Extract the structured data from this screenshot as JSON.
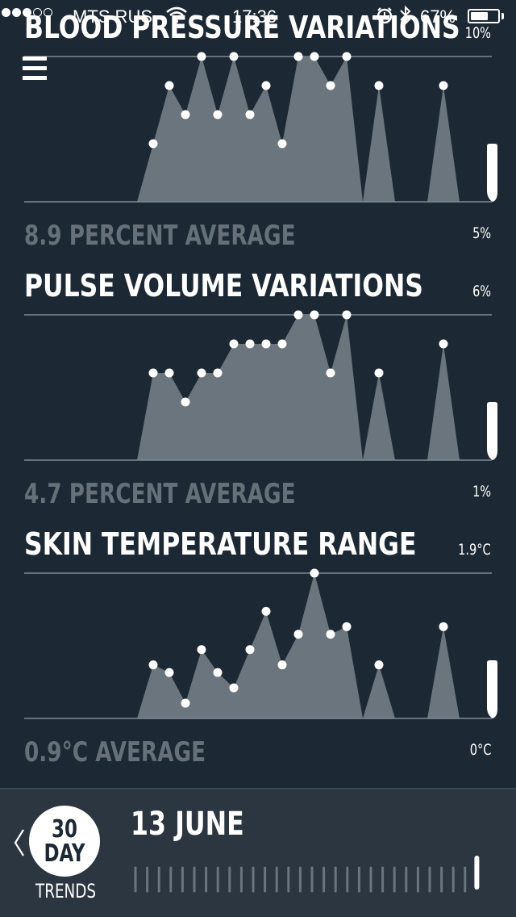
{
  "status_bar": {
    "signal_dots_filled": 3,
    "signal_dots_total": 5,
    "carrier": "MTS RUS",
    "time": "17:36",
    "battery_percent_label": "67%",
    "battery_level": 0.67,
    "icons": [
      "wifi-icon",
      "alarm-icon",
      "bluetooth-icon",
      "battery-icon"
    ]
  },
  "menu": {
    "icon": "hamburger-menu-icon"
  },
  "sections": [
    {
      "title": "BLOOD PRESSURE VARIATIONS",
      "max_label": "10%",
      "min_label": "5%",
      "average": "8.9 PERCENT AVERAGE"
    },
    {
      "title": "PULSE VOLUME VARIATIONS",
      "max_label": "6%",
      "min_label": "1%",
      "average": "4.7 PERCENT AVERAGE"
    },
    {
      "title": "SKIN TEMPERATURE RANGE",
      "max_label": "1.9°C",
      "min_label": "0°C",
      "average": "0.9°C AVERAGE"
    }
  ],
  "chart_data": [
    {
      "type": "area",
      "title": "BLOOD PRESSURE VARIATIONS",
      "ylim": [
        5,
        10
      ],
      "unit": "%",
      "x": [
        1,
        2,
        3,
        4,
        5,
        6,
        7,
        8,
        9,
        10,
        11,
        12,
        13,
        14,
        15,
        16,
        17,
        18,
        19,
        20,
        21,
        22,
        23,
        24,
        25,
        26,
        27,
        28,
        29,
        30
      ],
      "values": [
        null,
        null,
        null,
        null,
        null,
        null,
        null,
        7,
        9,
        8,
        10,
        8,
        10,
        8,
        9,
        7,
        10,
        10,
        9,
        10,
        null,
        9,
        null,
        null,
        null,
        9,
        null,
        null,
        null,
        null
      ],
      "current_marker_level": 0.4
    },
    {
      "type": "area",
      "title": "PULSE VOLUME VARIATIONS",
      "ylim": [
        1,
        6
      ],
      "unit": "%",
      "x": [
        1,
        2,
        3,
        4,
        5,
        6,
        7,
        8,
        9,
        10,
        11,
        12,
        13,
        14,
        15,
        16,
        17,
        18,
        19,
        20,
        21,
        22,
        23,
        24,
        25,
        26,
        27,
        28,
        29,
        30
      ],
      "values": [
        null,
        null,
        null,
        null,
        null,
        null,
        null,
        4,
        4,
        3,
        4,
        4,
        5,
        5,
        5,
        5,
        6,
        6,
        4,
        6,
        null,
        4,
        null,
        null,
        null,
        5,
        null,
        null,
        null,
        null
      ],
      "current_marker_level": 0.4
    },
    {
      "type": "area",
      "title": "SKIN TEMPERATURE RANGE",
      "ylim": [
        0,
        1.9
      ],
      "unit": "°C",
      "x": [
        1,
        2,
        3,
        4,
        5,
        6,
        7,
        8,
        9,
        10,
        11,
        12,
        13,
        14,
        15,
        16,
        17,
        18,
        19,
        20,
        21,
        22,
        23,
        24,
        25,
        26,
        27,
        28,
        29,
        30
      ],
      "values": [
        null,
        null,
        null,
        null,
        null,
        null,
        null,
        0.7,
        0.6,
        0.2,
        0.9,
        0.6,
        0.4,
        0.9,
        1.4,
        0.7,
        1.1,
        1.9,
        1.1,
        1.2,
        null,
        0.7,
        null,
        null,
        null,
        1.2,
        null,
        null,
        null,
        null
      ],
      "current_marker_level": 0.4
    }
  ],
  "bottom_bar": {
    "back_icon": "chevron-left-icon",
    "trend_number": "30",
    "trend_unit": "DAY",
    "trends_label": "TRENDS",
    "date": "13 JUNE",
    "scrubber_tick_count": 30,
    "scrubber_selected_day": 30
  },
  "colors": {
    "background": "#1c2833",
    "area_fill": "#6b757d",
    "axis_line": "#7f8a93",
    "point": "#ffffff",
    "muted_text": "#667079",
    "bottom_bar": "#2b3640"
  }
}
